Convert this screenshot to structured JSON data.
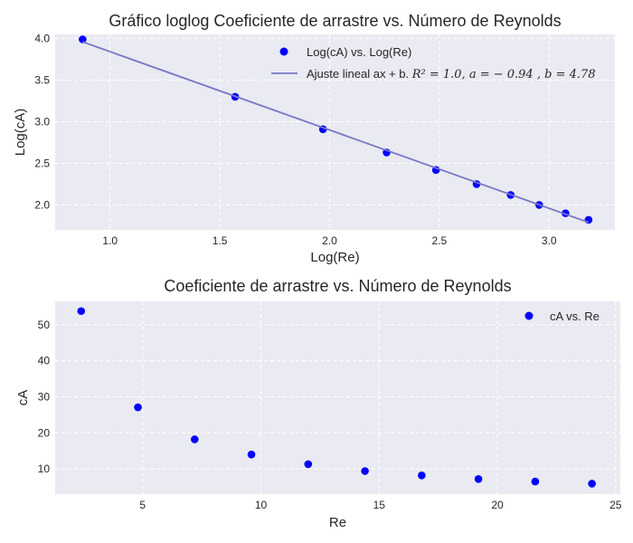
{
  "colors": {
    "plot_background": "#eaeaf2",
    "grid": "#ffffff",
    "marker": "#0000ff",
    "fit_line": "#7a76c8"
  },
  "chart_data": [
    {
      "type": "scatter",
      "title": "Gráfico loglog Coeficiente de arrastre vs. Número de Reynolds",
      "xlabel": "Log(Re)",
      "ylabel": "Log(cA)",
      "xlim": [
        0.75,
        3.3
      ],
      "ylim": [
        1.7,
        4.05
      ],
      "xticks": [
        1.0,
        1.5,
        2.0,
        2.5,
        3.0
      ],
      "xtick_labels": [
        "1.0",
        "1.5",
        "2.0",
        "2.5",
        "3.0"
      ],
      "yticks": [
        2.0,
        2.5,
        3.0,
        3.5,
        4.0
      ],
      "ytick_labels": [
        "2.0",
        "2.5",
        "3.0",
        "3.5",
        "4.0"
      ],
      "grid": true,
      "legend_position": "top-right",
      "series": [
        {
          "name": "Log(cA) vs. Log(Re)",
          "kind": "scatter",
          "x": [
            0.875,
            1.57,
            1.97,
            2.26,
            2.485,
            2.67,
            2.825,
            2.955,
            3.075,
            3.18
          ],
          "y": [
            3.99,
            3.3,
            2.91,
            2.63,
            2.42,
            2.25,
            2.12,
            2.0,
            1.9,
            1.82
          ]
        },
        {
          "name": "Ajuste lineal ax + b.",
          "legend_math": "R² = 1.0, a = − 0.94 , b = 4.78",
          "kind": "line",
          "x": [
            0.875,
            3.18
          ],
          "y": [
            3.96,
            1.79
          ]
        }
      ]
    },
    {
      "type": "scatter",
      "title": "Coeficiente de arrastre vs. Número de Reynolds",
      "xlabel": "Re",
      "ylabel": "cA",
      "xlim": [
        1.3,
        25.2
      ],
      "ylim": [
        3.0,
        56.5
      ],
      "xticks": [
        5,
        10,
        15,
        20,
        25
      ],
      "xtick_labels": [
        "5",
        "10",
        "15",
        "20",
        "25"
      ],
      "yticks": [
        10,
        20,
        30,
        40,
        50
      ],
      "ytick_labels": [
        "10",
        "20",
        "30",
        "40",
        "50"
      ],
      "grid": true,
      "legend_position": "top-right",
      "series": [
        {
          "name": "cA vs. Re",
          "kind": "scatter",
          "x": [
            2.4,
            4.8,
            7.2,
            9.6,
            12.0,
            14.4,
            16.8,
            19.2,
            21.6,
            24.0
          ],
          "y": [
            53.8,
            27.1,
            18.2,
            14.0,
            11.3,
            9.4,
            8.2,
            7.2,
            6.5,
            5.9
          ]
        }
      ]
    }
  ]
}
